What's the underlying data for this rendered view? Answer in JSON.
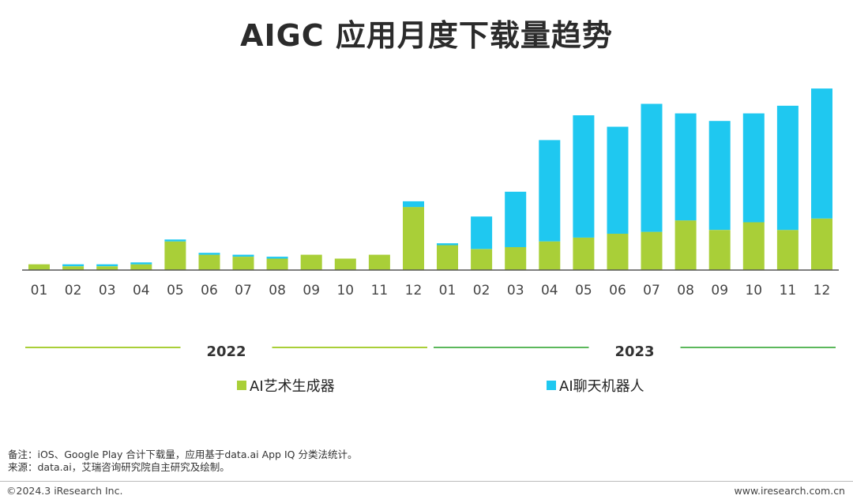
{
  "title": "AIGC 应用月度下载量趋势",
  "chart_data": {
    "type": "bar",
    "stacked": true,
    "categories": [
      "01",
      "02",
      "03",
      "04",
      "05",
      "06",
      "07",
      "08",
      "09",
      "10",
      "11",
      "12",
      "01",
      "02",
      "03",
      "04",
      "05",
      "06",
      "07",
      "08",
      "09",
      "10",
      "11",
      "12"
    ],
    "year_groups": [
      {
        "label": "2022",
        "from": 0,
        "to": 11,
        "color": "#a9cf38"
      },
      {
        "label": "2023",
        "from": 12,
        "to": 23,
        "color": "#5cb85c"
      }
    ],
    "series": [
      {
        "name": "AI艺术生成器",
        "color": "#a9cf38",
        "values": [
          3,
          2,
          2,
          3,
          15,
          8,
          7,
          6,
          8,
          6,
          8,
          33,
          13,
          11,
          12,
          15,
          17,
          19,
          20,
          26,
          21,
          25,
          21,
          27
        ]
      },
      {
        "name": "AI聊天机器人",
        "color": "#1fc8f0",
        "values": [
          0,
          1,
          1,
          1,
          1,
          1,
          1,
          1,
          0,
          0,
          0,
          3,
          1,
          17,
          29,
          53,
          64,
          56,
          67,
          56,
          57,
          57,
          65,
          68
        ]
      }
    ],
    "ylim": [
      0,
      100
    ],
    "legend_position": "bottom"
  },
  "notes": {
    "line1": "备注：iOS、Google Play 合计下载量，应用基于data.ai App IQ 分类法统计。",
    "line2": "来源：data.ai，艾瑞咨询研究院自主研究及绘制。"
  },
  "footer": {
    "left": "©2024.3 iResearch Inc.",
    "right": "www.iresearch.com.cn"
  }
}
